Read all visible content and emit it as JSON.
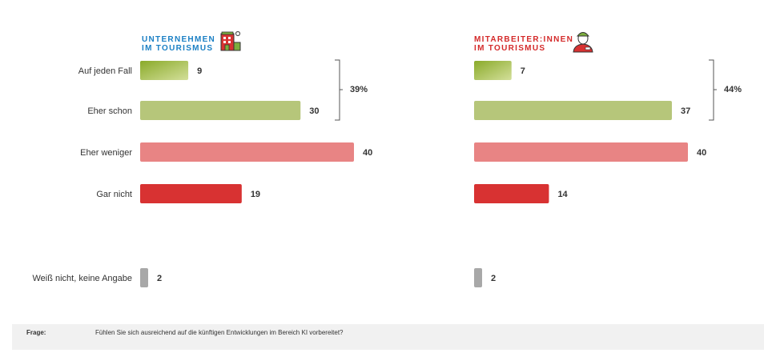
{
  "chart_data": {
    "type": "bar",
    "orientation": "horizontal",
    "categories": [
      "Auf jeden Fall",
      "Eher schon",
      "Eher weniger",
      "Gar nicht",
      "Weiß nicht, keine Angabe"
    ],
    "panels": [
      {
        "title": [
          "UNTERNEHMEN",
          "IM TOURISMUS"
        ],
        "title_color": "#1a7fc4",
        "icon": "hotel-building-icon",
        "values": [
          9,
          30,
          40,
          19,
          2
        ],
        "bracket_label": "39%"
      },
      {
        "title": [
          "MITARBEITER:INNEN",
          "IM TOURISMUS"
        ],
        "title_color": "#d42a2a",
        "icon": "employee-cap-icon",
        "values": [
          7,
          37,
          40,
          14,
          2
        ],
        "bracket_label": "44%"
      }
    ],
    "colors": [
      "#9cb93c",
      "#b6c67a",
      "#e88484",
      "#d83232",
      "#a8a8a8"
    ],
    "grid": false
  },
  "footer": {
    "label": "Frage:",
    "question": "Fühlen Sie sich ausreichend auf die künftigen Entwicklungen im Bereich KI vorbereitet?"
  }
}
